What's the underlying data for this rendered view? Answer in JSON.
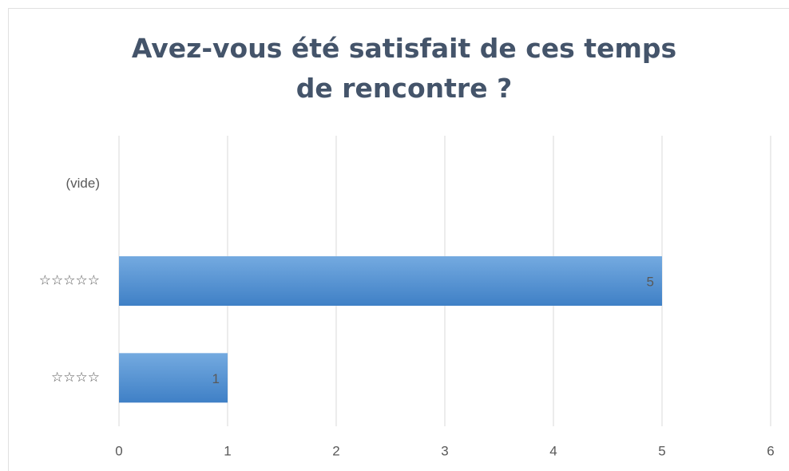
{
  "chart_data": {
    "type": "bar",
    "orientation": "horizontal",
    "title": "Avez-vous été satisfait de ces temps de rencontre ?",
    "categories": [
      "(vide)",
      "☆☆☆☆☆",
      "☆☆☆☆"
    ],
    "values": [
      null,
      5,
      1
    ],
    "color": "#5b9bd5",
    "xlim": [
      0,
      6
    ],
    "xticks": [
      0,
      1,
      2,
      3,
      4,
      5,
      6
    ],
    "grid": true
  }
}
